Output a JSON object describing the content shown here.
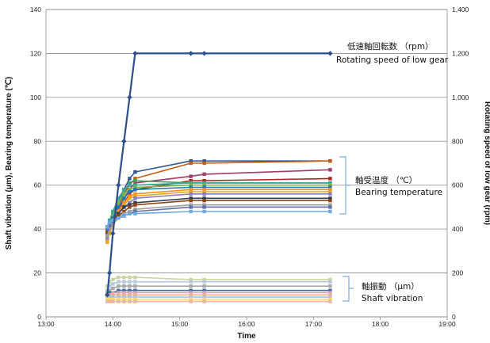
{
  "chart_data": {
    "type": "line",
    "xlabel": "Time",
    "ylabel_left": "Shaft vibration (μm), Bearing temperature (℃)",
    "ylabel_right": "Rotating speed of low gear (rpm)",
    "x_ticks": [
      "13:00",
      "14:00",
      "15:00",
      "16:00",
      "17:00",
      "18:00",
      "19:00"
    ],
    "y_left_ticks": [
      "0",
      "20",
      "40",
      "60",
      "80",
      "100",
      "120",
      "140"
    ],
    "y_right_ticks": [
      "0",
      "200",
      "400",
      "600",
      "800",
      "1,000",
      "1,200",
      "1,400"
    ],
    "xlim": [
      "13:00",
      "19:00"
    ],
    "ylim_left": [
      0,
      140
    ],
    "ylim_right": [
      0,
      1400
    ],
    "grid": "horizontal",
    "annotations": {
      "rpm_jp": "低速軸回転数 （rpm）",
      "rpm_en": "Rotating speed of low gear",
      "temp_jp": "軸受温度 （℃）",
      "temp_en": "Bearing temperature",
      "vib_jp": "軸振動 （μm）",
      "vib_en": "Shaft vibration"
    },
    "x": [
      "13:55",
      "13:57",
      "14:00",
      "14:05",
      "14:10",
      "14:15",
      "14:20",
      "15:10",
      "15:22",
      "17:15"
    ],
    "series": [
      {
        "group": "rpm",
        "color": "#2f4e8c",
        "axis": "right",
        "values": [
          100,
          200,
          380,
          600,
          800,
          1000,
          1200,
          1200,
          1200,
          1200
        ]
      },
      {
        "group": "temp",
        "color": "#2f5597",
        "values": [
          38,
          42,
          45,
          52,
          58,
          63,
          66,
          71,
          71,
          71
        ]
      },
      {
        "group": "temp",
        "color": "#c55a11",
        "values": [
          36,
          41,
          44,
          50,
          56,
          60,
          63,
          70,
          70,
          71
        ]
      },
      {
        "group": "temp",
        "color": "#9e3b6e",
        "values": [
          39,
          42,
          44,
          48,
          54,
          58,
          61,
          64,
          65,
          67
        ]
      },
      {
        "group": "temp",
        "color": "#b22222",
        "values": [
          37,
          40,
          43,
          47,
          52,
          56,
          58,
          62,
          62,
          63
        ]
      },
      {
        "group": "temp",
        "color": "#4a9a5c",
        "values": [
          40,
          43,
          47,
          52,
          57,
          61,
          62,
          61,
          61,
          61
        ]
      },
      {
        "group": "temp",
        "color": "#3aa6a0",
        "values": [
          41,
          44,
          48,
          54,
          58,
          60,
          60,
          61,
          61,
          61
        ]
      },
      {
        "group": "temp",
        "color": "#7cb342",
        "values": [
          38,
          42,
          46,
          52,
          56,
          58,
          59,
          60,
          60,
          60
        ]
      },
      {
        "group": "temp",
        "color": "#1f78b4",
        "values": [
          37,
          41,
          45,
          50,
          54,
          57,
          58,
          59,
          59,
          59
        ]
      },
      {
        "group": "temp",
        "color": "#ff8c1a",
        "values": [
          35,
          39,
          43,
          48,
          52,
          55,
          56,
          58,
          58,
          58
        ]
      },
      {
        "group": "temp",
        "color": "#e6a817",
        "values": [
          34,
          38,
          42,
          47,
          51,
          54,
          55,
          57,
          57,
          57
        ]
      },
      {
        "group": "temp",
        "color": "#8e7cc3",
        "values": [
          36,
          40,
          43,
          47,
          50,
          52,
          54,
          56,
          56,
          56
        ]
      },
      {
        "group": "temp",
        "color": "#2e4057",
        "values": [
          38,
          41,
          44,
          47,
          50,
          51,
          52,
          54,
          54,
          54
        ]
      },
      {
        "group": "temp",
        "color": "#8b4513",
        "values": [
          39,
          42,
          44,
          46,
          48,
          50,
          51,
          53,
          53,
          53
        ]
      },
      {
        "group": "temp",
        "color": "#a0a0a0",
        "values": [
          37,
          40,
          42,
          45,
          47,
          48,
          49,
          51,
          51,
          51
        ]
      },
      {
        "group": "temp",
        "color": "#5b6fa8",
        "values": [
          40,
          42,
          44,
          45,
          46,
          47,
          48,
          50,
          50,
          50
        ]
      },
      {
        "group": "temp",
        "color": "#6fa8dc",
        "values": [
          41,
          43,
          44,
          45,
          46,
          47,
          47,
          48,
          48,
          48
        ]
      },
      {
        "group": "vib",
        "color": "#c9d6a3",
        "values": [
          14,
          16,
          17,
          18,
          18,
          18,
          18,
          17,
          17,
          17
        ]
      },
      {
        "group": "vib",
        "color": "#b9c7e0",
        "values": [
          12,
          14,
          15,
          16,
          16,
          16,
          16,
          16,
          16,
          16
        ]
      },
      {
        "group": "vib",
        "color": "#a9a9a9",
        "values": [
          11,
          12,
          13,
          14,
          14,
          14,
          14,
          14,
          14,
          14
        ]
      },
      {
        "group": "vib",
        "color": "#3a6ea5",
        "values": [
          10,
          11,
          11,
          12,
          12,
          12,
          12,
          12,
          12,
          12
        ]
      },
      {
        "group": "vib",
        "color": "#d9a0c8",
        "values": [
          9,
          10,
          11,
          11,
          11,
          11,
          11,
          11,
          11,
          11
        ]
      },
      {
        "group": "vib",
        "color": "#f4b183",
        "values": [
          10,
          10,
          10,
          10,
          10,
          10,
          10,
          10,
          10,
          10
        ]
      },
      {
        "group": "vib",
        "color": "#9fc5e8",
        "values": [
          9,
          9,
          9,
          9,
          9,
          9,
          9,
          9,
          9,
          9
        ]
      },
      {
        "group": "vib",
        "color": "#ffd966",
        "values": [
          8,
          8,
          8,
          8,
          8,
          8,
          8,
          8,
          8,
          8
        ]
      },
      {
        "group": "vib",
        "color": "#e6b8a2",
        "values": [
          7,
          7,
          7,
          7,
          7,
          7,
          7,
          7,
          7,
          7
        ]
      }
    ]
  }
}
